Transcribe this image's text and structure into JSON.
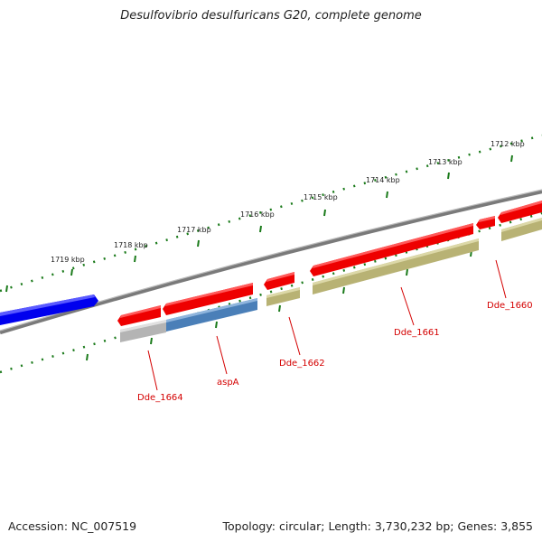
{
  "title": "Desulfovibrio desulfuricans G20, complete genome",
  "footer": {
    "accession_label": "Accession:",
    "accession": "NC_007519",
    "topology_label": "Topology:",
    "topology": "circular;",
    "length_label": "Length:",
    "length": "3,730,232 bp;",
    "genes_label": "Genes:",
    "genes": "3,855"
  },
  "scale_labels": [
    "1719 kbp",
    "1718 kbp",
    "1717 kbp",
    "1716 kbp",
    "1715 kbp",
    "1714 kbp",
    "1713 kbp",
    "1712 kbp"
  ],
  "gene_labels": [
    "Dde_1664",
    "aspA",
    "Dde_1662",
    "Dde_1661",
    "Dde_1660"
  ],
  "colors": {
    "forward_gene": "#ee0000",
    "reverse_gene": "#0000ee",
    "cds_olive": "#b8b274",
    "cds_blue": "#4a7fb8",
    "cds_gray": "#b4b4b4",
    "backbone": "#808080",
    "scale_ticks": "#1a7a1a",
    "label_red": "#d40000"
  }
}
